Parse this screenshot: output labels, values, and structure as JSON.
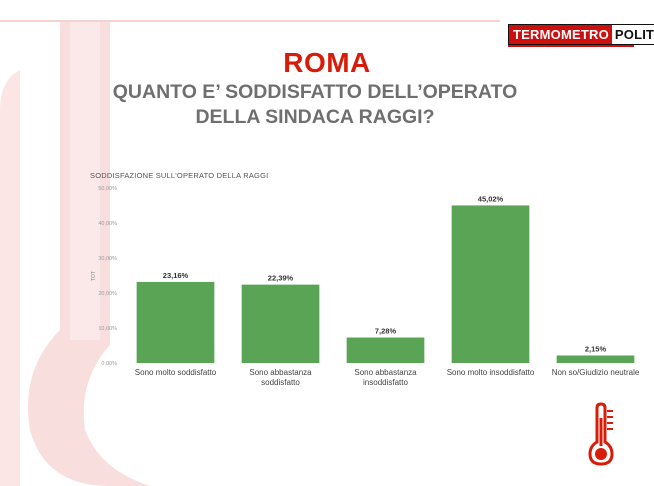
{
  "brand": {
    "part_a": "TERMOMETRO",
    "part_b": "POLITICO"
  },
  "header": {
    "title": "ROMA",
    "subtitle_line1": "QUANTO E’ SODDISFATTO DELL’OPERATO",
    "subtitle_line2": "DELLA SINDACA RAGGI?"
  },
  "colors": {
    "bar": "#5aa455",
    "title": "#d81c0a",
    "brand_red": "#cc1010",
    "decor": "#f9dede"
  },
  "icons": {
    "thermometer": "thermometer-icon"
  },
  "chart_data": {
    "type": "bar",
    "title": "SODDISFAZIONE SULL'OPERATO DELLA RAGGI",
    "ylabel": "TOT",
    "xlabel": "",
    "ylim": [
      0,
      50
    ],
    "yticks": [
      0,
      10,
      20,
      30,
      40,
      50
    ],
    "ytick_labels": [
      "0,00%",
      "10,00%",
      "20,00%",
      "30,00%",
      "40,00%",
      "50,00%"
    ],
    "grid": false,
    "categories": [
      [
        "Sono molto soddisfatto"
      ],
      [
        "Sono abbastanza",
        "soddisfatto"
      ],
      [
        "Sono abbastanza",
        "insoddisfatto"
      ],
      [
        "Sono molto insoddisfatto"
      ],
      [
        "Non so/Giudizio neutrale"
      ]
    ],
    "values": [
      23.16,
      22.39,
      7.28,
      45.02,
      2.15
    ],
    "value_labels": [
      "23,16%",
      "22,39%",
      "7,28%",
      "45,02%",
      "2,15%"
    ]
  }
}
